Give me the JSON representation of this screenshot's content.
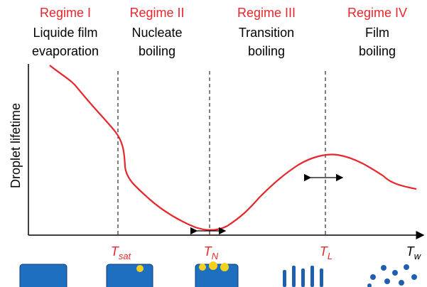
{
  "regimes": [
    {
      "name": "Regime I",
      "lines": [
        "Liquide film",
        "evaporation"
      ]
    },
    {
      "name": "Regime II",
      "lines": [
        "Nucleate",
        "boiling"
      ]
    },
    {
      "name": "Regime III",
      "lines": [
        "Transition",
        "boiling"
      ]
    },
    {
      "name": "Regime IV",
      "lines": [
        "Film",
        "boiling"
      ]
    }
  ],
  "y_axis_label": "Droplet lifetime",
  "x_markers": [
    {
      "symbol": "T",
      "subscript": "sat"
    },
    {
      "symbol": "T",
      "subscript": "N"
    },
    {
      "symbol": "T",
      "subscript": "L"
    },
    {
      "symbol": "T",
      "subscript": "w"
    }
  ]
}
